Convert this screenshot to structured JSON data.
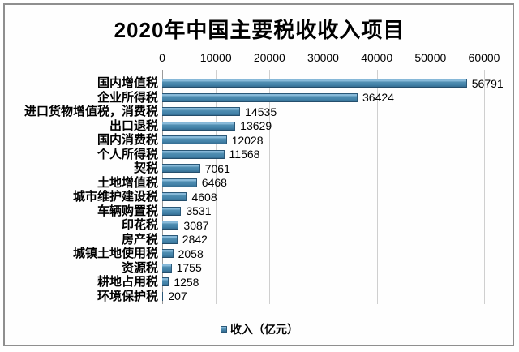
{
  "chart_data": {
    "type": "bar",
    "orientation": "horizontal",
    "title": "2020年中国主要税收收入项目",
    "categories": [
      "国内增值税",
      "企业所得税",
      "进口货物增值税，消费税",
      "出口退税",
      "国内消费税",
      "个人所得税",
      "契税",
      "土地增值税",
      "城市维护建设税",
      "车辆购置税",
      "印花税",
      "房产税",
      "城镇土地使用税",
      "资源税",
      "耕地占用税",
      "环境保护税"
    ],
    "values": [
      56791,
      36424,
      14535,
      13629,
      12028,
      11568,
      7061,
      6468,
      4608,
      3531,
      3087,
      2842,
      2058,
      1755,
      1258,
      207
    ],
    "x_ticks": [
      0,
      10000,
      20000,
      30000,
      40000,
      50000,
      60000
    ],
    "xlim": [
      0,
      60000
    ],
    "grid": true,
    "legend": {
      "label": "收入（亿元）",
      "position": "bottom"
    },
    "colors": {
      "bar_fill": "#4e8cb0",
      "bar_border": "#2a5878",
      "gridline": "#cfcfcf",
      "frame_border": "#8f8f8f",
      "text": "#000000"
    }
  }
}
